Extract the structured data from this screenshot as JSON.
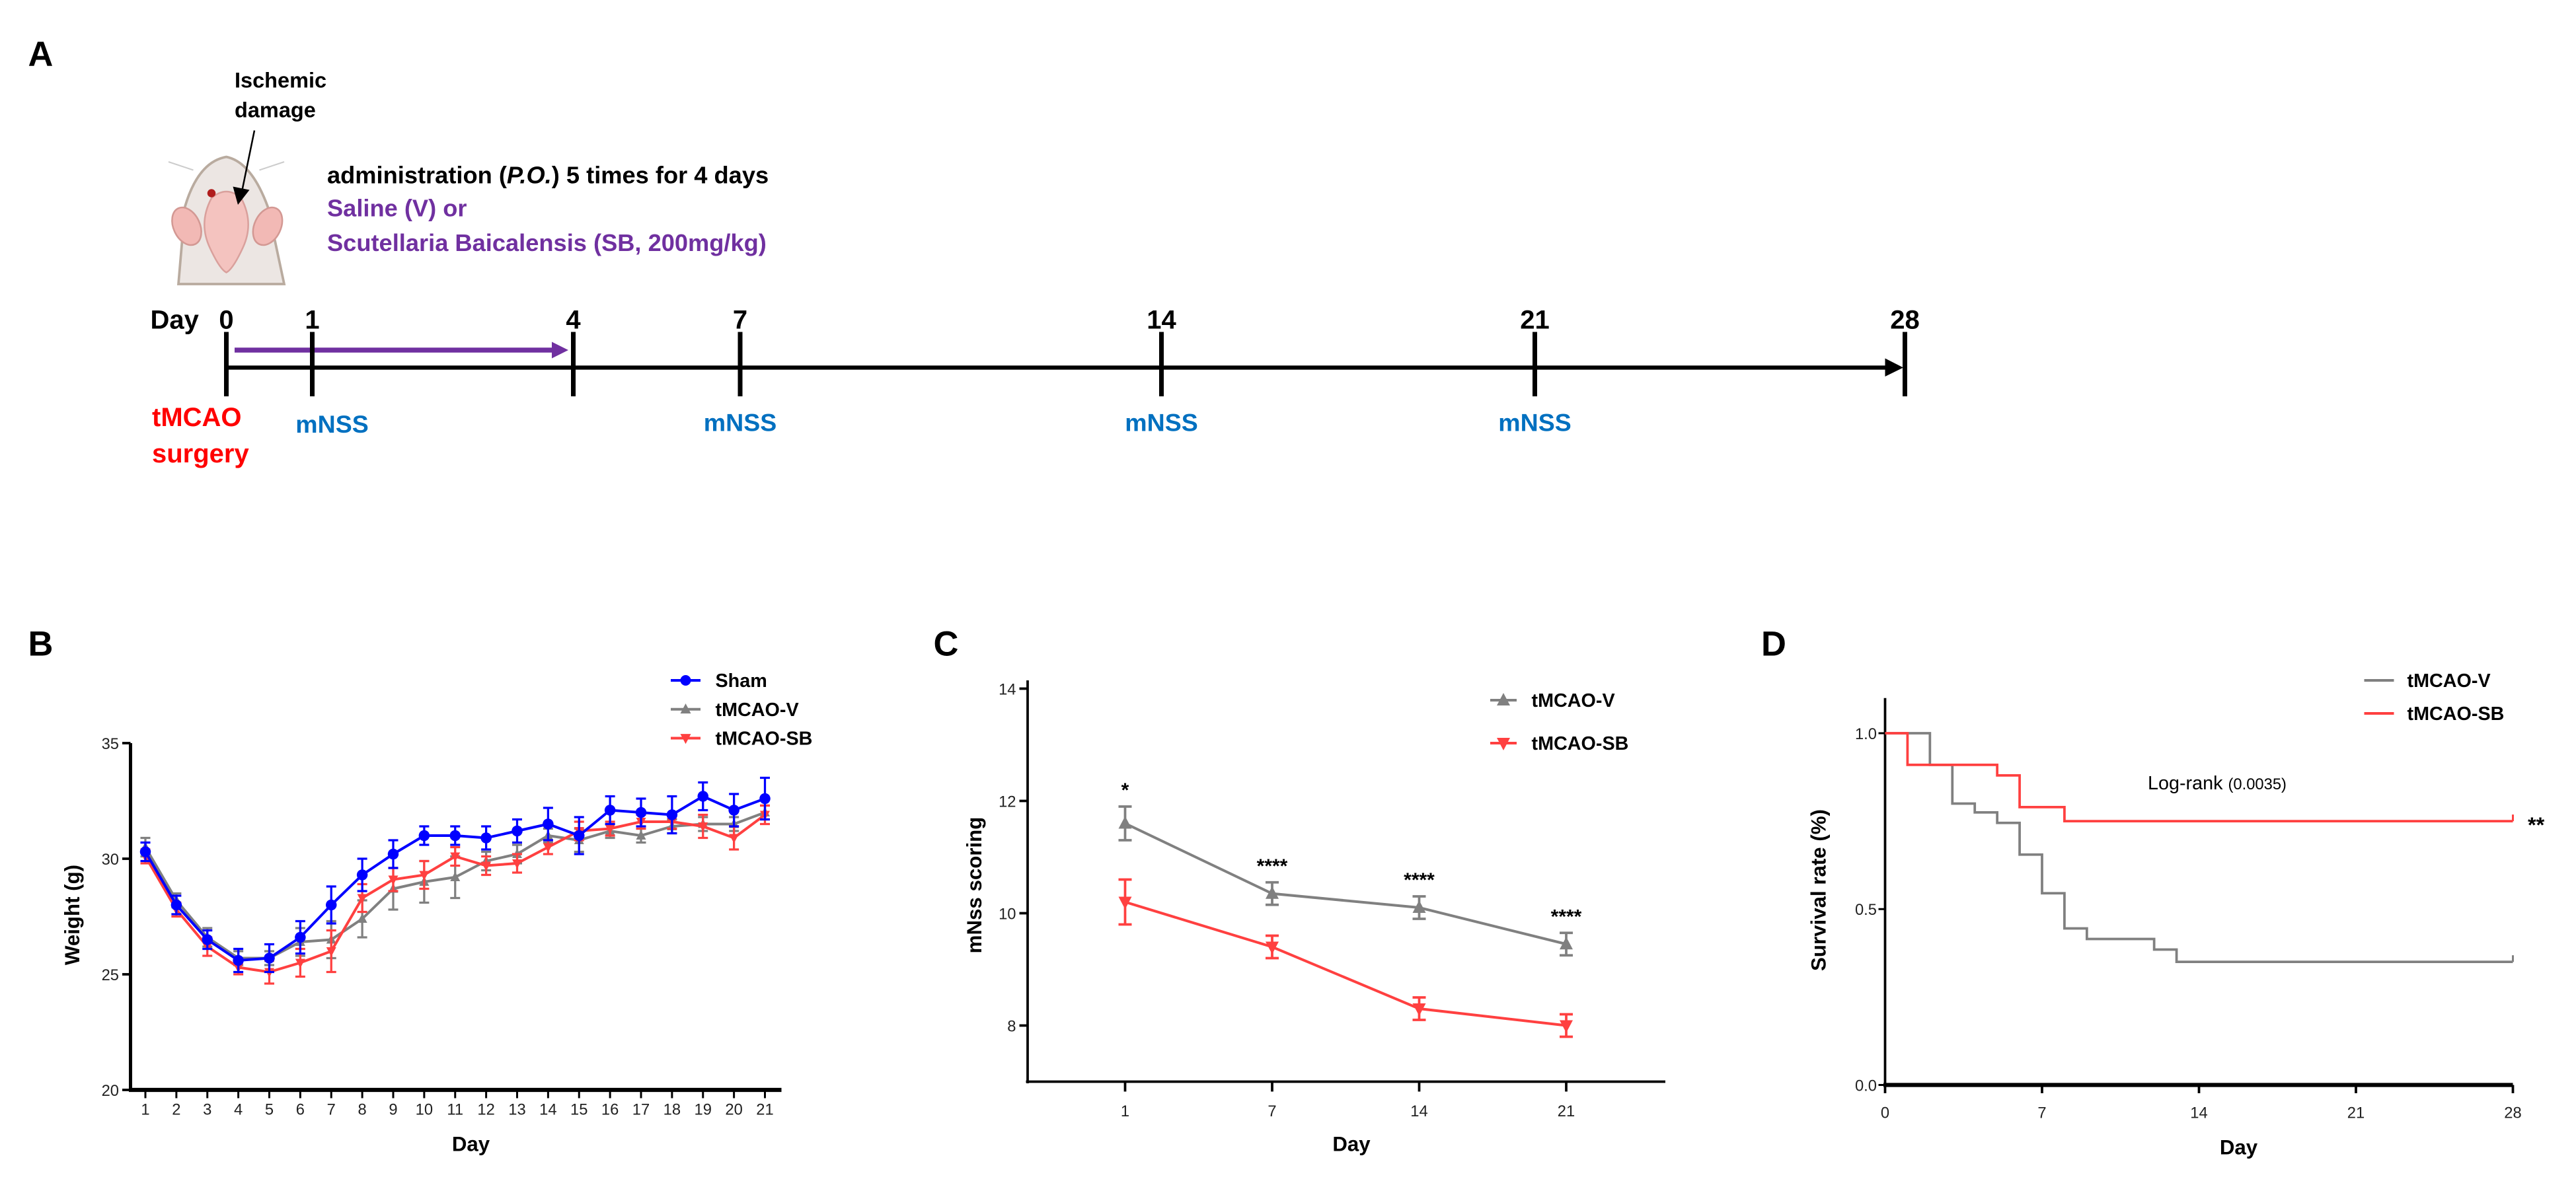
{
  "panel_a": {
    "letter": "A",
    "ischemic_line1": "Ischemic",
    "ischemic_line2": "damage",
    "admin_prefix": "administration (",
    "admin_po": "P.O.",
    "admin_suffix": ") 5 times for 4 days",
    "treatment_line1": "Saline (V) or",
    "treatment_line2": "Scutellaria Baicalensis (SB, 200mg/kg)",
    "day_label": "Day",
    "timeline_days": [
      "0",
      "1",
      "4",
      "7",
      "14",
      "21",
      "28"
    ],
    "surgery_line1": "tMCAO",
    "surgery_line2": "surgery",
    "assessment_label": "mNSS",
    "assessment_days": [
      "1",
      "7",
      "14",
      "21"
    ],
    "colors": {
      "surgery": "#ff0000",
      "assessment": "#0070c0",
      "treatment": "#7030a0"
    }
  },
  "chart_data": [
    {
      "panel": "B",
      "type": "line",
      "xlabel": "Day",
      "ylabel": "Weight (g)",
      "x": [
        1,
        2,
        3,
        4,
        5,
        6,
        7,
        8,
        9,
        10,
        11,
        12,
        13,
        14,
        15,
        16,
        17,
        18,
        19,
        20,
        21
      ],
      "xticks": [
        "1",
        "2",
        "3",
        "4",
        "5",
        "6",
        "7",
        "8",
        "9",
        "10",
        "11",
        "12",
        "13",
        "14",
        "15",
        "16",
        "17",
        "18",
        "19",
        "20",
        "21"
      ],
      "ylim": [
        20,
        35
      ],
      "yticks": [
        "20",
        "25",
        "30",
        "35"
      ],
      "legend_position": "top-right",
      "series": [
        {
          "name": "Sham",
          "color": "#0000ff",
          "marker": "circle",
          "values": [
            30.3,
            28.0,
            26.5,
            25.6,
            25.7,
            26.6,
            28.0,
            29.3,
            30.2,
            31.0,
            31.0,
            30.9,
            31.2,
            31.5,
            31.0,
            32.1,
            32.0,
            31.9,
            32.7,
            32.1,
            32.6
          ],
          "errors": [
            0.4,
            0.4,
            0.4,
            0.5,
            0.6,
            0.7,
            0.8,
            0.7,
            0.6,
            0.4,
            0.4,
            0.5,
            0.5,
            0.7,
            0.8,
            0.6,
            0.6,
            0.8,
            0.6,
            0.7,
            0.9
          ]
        },
        {
          "name": "tMCAO-V",
          "color": "#808080",
          "marker": "triangle-up",
          "values": [
            30.5,
            28.2,
            26.6,
            25.7,
            25.7,
            26.4,
            26.5,
            27.4,
            28.7,
            29.0,
            29.2,
            29.9,
            30.2,
            31.0,
            30.8,
            31.2,
            31.0,
            31.4,
            31.5,
            31.5,
            32.0
          ],
          "errors": [
            0.4,
            0.3,
            0.4,
            0.3,
            0.3,
            0.6,
            0.8,
            0.8,
            0.9,
            0.9,
            0.9,
            0.4,
            0.4,
            0.3,
            0.5,
            0.3,
            0.3,
            0.3,
            0.3,
            0.3,
            0.3
          ]
        },
        {
          "name": "tMCAO-SB",
          "color": "#ff4040",
          "marker": "triangle-down",
          "values": [
            30.1,
            27.8,
            26.2,
            25.3,
            25.1,
            25.5,
            26.0,
            28.3,
            29.1,
            29.3,
            30.1,
            29.7,
            29.8,
            30.5,
            31.2,
            31.3,
            31.6,
            31.6,
            31.4,
            30.9,
            31.9
          ],
          "errors": [
            0.3,
            0.3,
            0.4,
            0.3,
            0.5,
            0.6,
            0.9,
            0.6,
            0.5,
            0.6,
            0.4,
            0.4,
            0.4,
            0.3,
            0.4,
            0.3,
            0.3,
            0.3,
            0.5,
            0.5,
            0.4
          ]
        }
      ]
    },
    {
      "panel": "C",
      "type": "line",
      "xlabel": "Day",
      "ylabel": "mNss scoring",
      "categories": [
        "1",
        "7",
        "14",
        "21"
      ],
      "ylim": [
        7,
        14
      ],
      "yticks": [
        "8",
        "10",
        "12",
        "14"
      ],
      "legend_position": "top-right",
      "significance": [
        "*",
        "****",
        "****",
        "****"
      ],
      "series": [
        {
          "name": "tMCAO-V",
          "color": "#808080",
          "marker": "triangle-up",
          "values": [
            11.6,
            10.35,
            10.1,
            9.45
          ],
          "errors": [
            0.3,
            0.2,
            0.2,
            0.2
          ]
        },
        {
          "name": "tMCAO-SB",
          "color": "#ff4040",
          "marker": "triangle-down",
          "values": [
            10.2,
            9.4,
            8.3,
            8.0
          ],
          "errors": [
            0.4,
            0.2,
            0.2,
            0.2
          ]
        }
      ]
    },
    {
      "panel": "D",
      "type": "line",
      "subtype": "kaplan-meier",
      "xlabel": "Day",
      "ylabel": "Survival rate (%)",
      "xlim": [
        0,
        28
      ],
      "xticks": [
        "0",
        "7",
        "14",
        "21",
        "28"
      ],
      "ylim": [
        0,
        1.1
      ],
      "yticks": [
        "0.0",
        "0.5",
        "1.0"
      ],
      "legend_position": "top-right",
      "annotation": "Log-rank",
      "p_value": "(0.0035)",
      "significance": "**",
      "series": [
        {
          "name": "tMCAO-V",
          "color": "#808080",
          "steps": [
            [
              0,
              1.0
            ],
            [
              2,
              0.91
            ],
            [
              3,
              0.8
            ],
            [
              4,
              0.775
            ],
            [
              5,
              0.745
            ],
            [
              6,
              0.655
            ],
            [
              7,
              0.545
            ],
            [
              8,
              0.445
            ],
            [
              9,
              0.415
            ],
            [
              12,
              0.385
            ],
            [
              13,
              0.35
            ],
            [
              28,
              0.35
            ]
          ]
        },
        {
          "name": "tMCAO-SB",
          "color": "#ff4040",
          "steps": [
            [
              0,
              1.0
            ],
            [
              1,
              0.91
            ],
            [
              5,
              0.88
            ],
            [
              6,
              0.79
            ],
            [
              8,
              0.75
            ],
            [
              28,
              0.75
            ]
          ]
        }
      ]
    }
  ]
}
